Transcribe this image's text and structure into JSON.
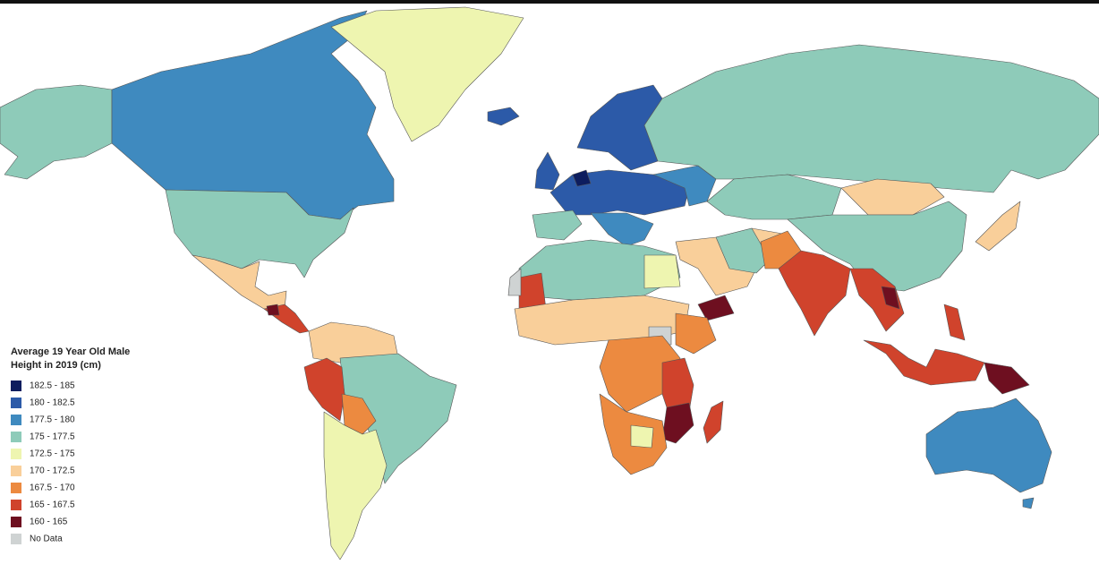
{
  "legend": {
    "title_lines": [
      "Average 19 Year Old Male",
      "Height in 2019 (cm)"
    ],
    "items": [
      {
        "label": "182.5 - 185",
        "color": "#0d1d5e"
      },
      {
        "label": "180 - 182.5",
        "color": "#2c5aa8"
      },
      {
        "label": "177.5 - 180",
        "color": "#3f8abf"
      },
      {
        "label": "175 - 177.5",
        "color": "#8ecbb9"
      },
      {
        "label": "172.5 - 175",
        "color": "#eef5b0"
      },
      {
        "label": "170 - 172.5",
        "color": "#f9cf9a"
      },
      {
        "label": "167.5 - 170",
        "color": "#ec8a40"
      },
      {
        "label": "165 - 167.5",
        "color": "#d0432c"
      },
      {
        "label": "160 - 165",
        "color": "#6e0f20"
      },
      {
        "label": "No Data",
        "color": "#cfd3d3"
      }
    ]
  }
}
